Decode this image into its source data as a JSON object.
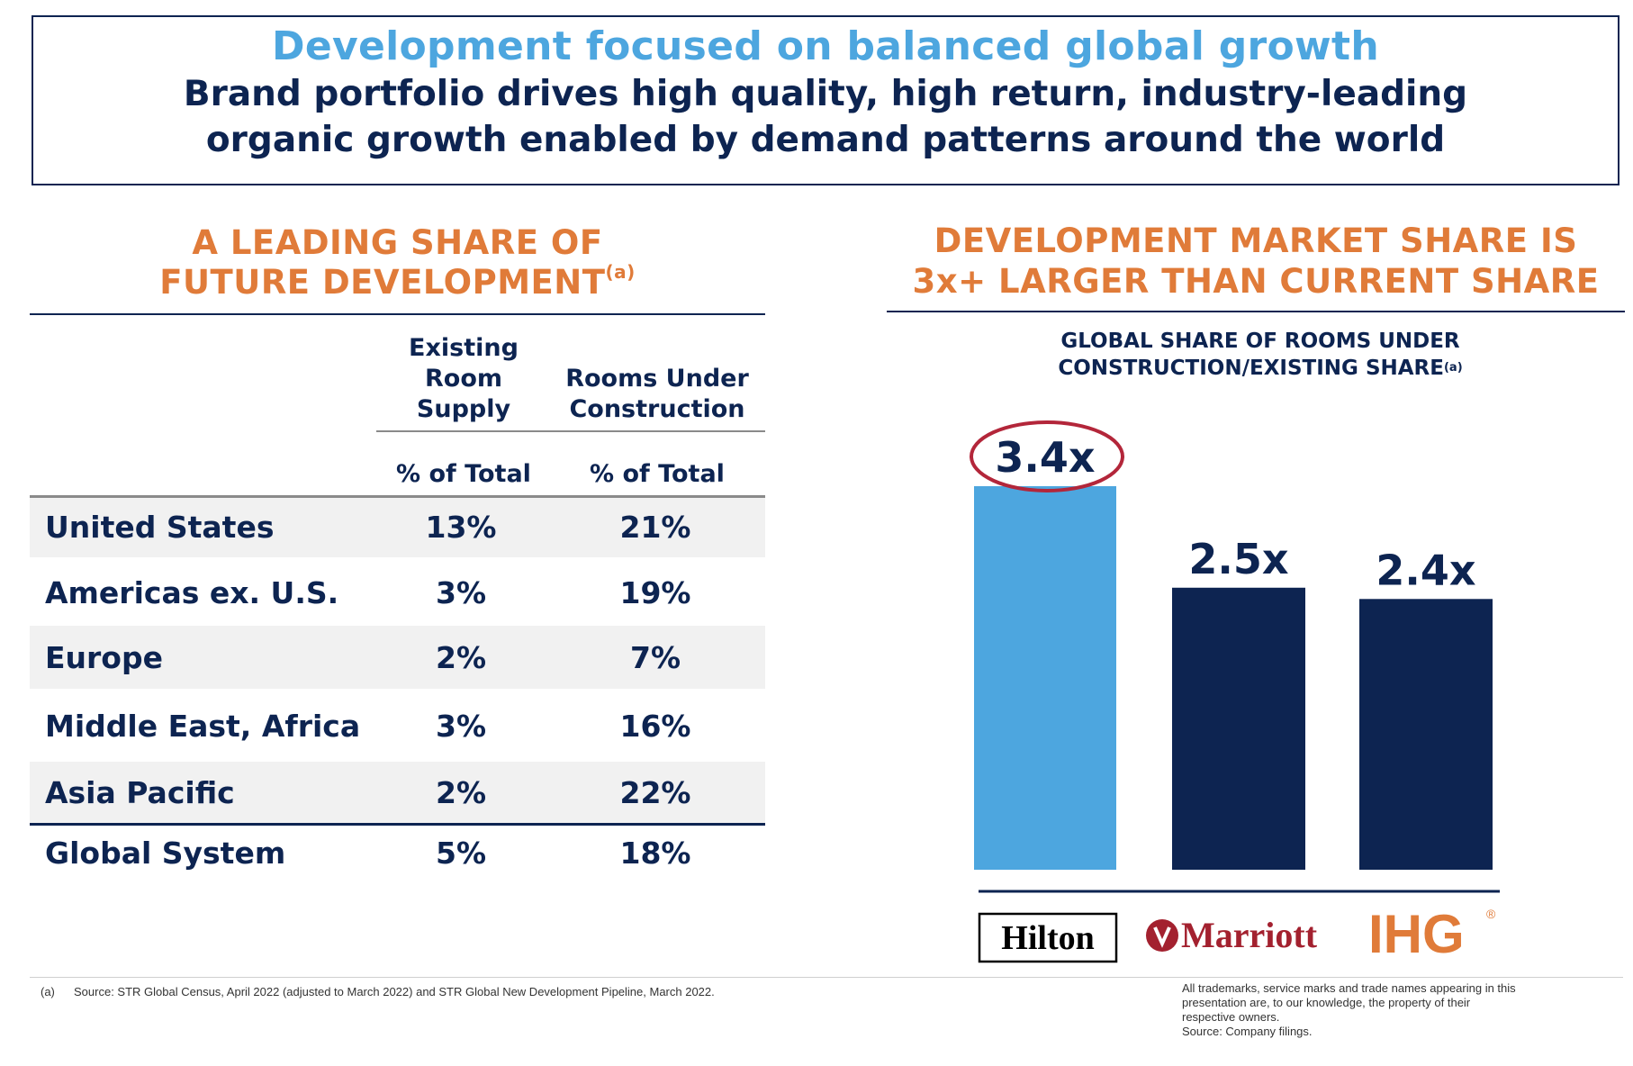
{
  "header": {
    "title": "Development focused on balanced global growth",
    "subtitle_line1": "Brand portfolio drives high quality, high return, industry-leading",
    "subtitle_line2": "organic growth enabled by demand patterns around the world"
  },
  "left": {
    "title_line1": "A LEADING SHARE OF",
    "title_line2": "FUTURE DEVELOPMENT",
    "title_sup": "(a)",
    "col1_header": [
      "Existing",
      "Room",
      "Supply"
    ],
    "col2_header": [
      "Rooms Under",
      "Construction"
    ],
    "col1_unit": "% of Total",
    "col2_unit": "% of Total",
    "rows": [
      {
        "label": "United States",
        "existing": "13%",
        "construction": "21%"
      },
      {
        "label": "Americas ex. U.S.",
        "existing": "3%",
        "construction": "19%"
      },
      {
        "label": "Europe",
        "existing": "2%",
        "construction": "7%"
      },
      {
        "label": "Middle East, Africa",
        "existing": "3%",
        "construction": "16%"
      },
      {
        "label": "Asia Pacific",
        "existing": "2%",
        "construction": "22%"
      },
      {
        "label": "Global System",
        "existing": "5%",
        "construction": "18%"
      }
    ]
  },
  "right": {
    "title_line1": "DEVELOPMENT MARKET SHARE IS",
    "title_line2": "3x+ LARGER THAN CURRENT SHARE",
    "chart_title_line1": "GLOBAL SHARE OF ROOMS UNDER",
    "chart_title_line2": "CONSTRUCTION/EXISTING SHARE",
    "chart_title_sup": "(a)"
  },
  "chart_data": {
    "type": "bar",
    "title": "GLOBAL SHARE OF ROOMS UNDER CONSTRUCTION/EXISTING SHARE",
    "categories": [
      "Hilton",
      "Marriott",
      "IHG"
    ],
    "values": [
      3.4,
      2.5,
      2.4
    ],
    "labels": [
      "3.4x",
      "2.5x",
      "2.4x"
    ],
    "ylim": [
      0,
      3.4
    ],
    "highlight": "Hilton",
    "colors": [
      "#4da6df",
      "#0d2451",
      "#0d2451"
    ],
    "xlabel": "",
    "ylabel": ""
  },
  "logos": {
    "hilton": "Hilton",
    "marriott": "Marriott",
    "ihg": "IHG",
    "ihg_mark": "®"
  },
  "footnotes": {
    "marker": "(a)",
    "source": "Source: STR Global Census, April 2022 (adjusted to March 2022) and STR Global New Development Pipeline, March 2022.",
    "trademark_lines": [
      "All trademarks, service marks and trade names appearing in this",
      "presentation are, to our knowledge, the property of their",
      "respective owners."
    ],
    "company_source": "Source: Company filings."
  },
  "colors": {
    "navy": "#0d2451",
    "blue": "#4da6df",
    "orange": "#e07b39",
    "marriott_red": "#a3212f",
    "highlight_ring": "#b3263a"
  }
}
